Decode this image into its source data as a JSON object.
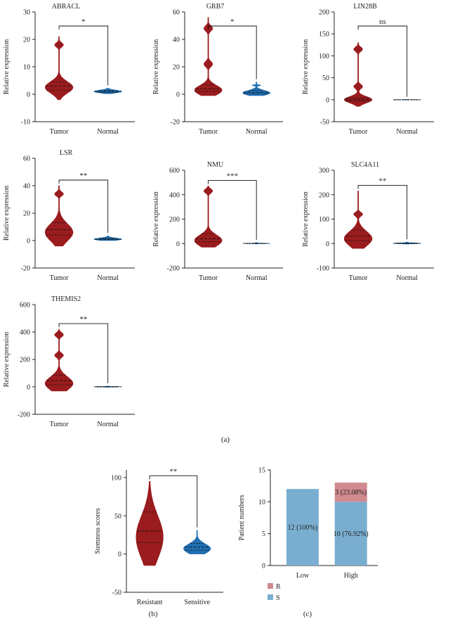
{
  "colors": {
    "tumor": "#9b1c1e",
    "normal": "#1f6fb2",
    "stacked_s": "#7aaed0",
    "stacked_r": "#d08a8f",
    "axis": "#222222"
  },
  "panel_labels": {
    "a": "(a)",
    "b": "(b)",
    "c": "(c)"
  },
  "chart_data": [
    {
      "type": "violin",
      "title": "ABRACL",
      "ylabel": "Relative expression",
      "categories": [
        "Tumor",
        "Normal"
      ],
      "ylim": [
        -10,
        30
      ],
      "yticks": [
        -10,
        0,
        10,
        20,
        30
      ],
      "significance": "*",
      "series": [
        {
          "name": "Tumor",
          "min": -2,
          "max": 21,
          "median": 3,
          "q1": 1.5,
          "q3": 4.5,
          "mode": 2.5,
          "bumps": [
            18
          ]
        },
        {
          "name": "Normal",
          "min": 0.2,
          "max": 2.2,
          "median": 1,
          "q1": 0.7,
          "q3": 1.4,
          "mode": 1,
          "bumps": []
        }
      ]
    },
    {
      "type": "violin",
      "title": "GRB7",
      "ylabel": "Relative expression",
      "categories": [
        "Tumor",
        "Normal"
      ],
      "ylim": [
        -20,
        60
      ],
      "yticks": [
        -20,
        0,
        20,
        40,
        60
      ],
      "significance": "*",
      "series": [
        {
          "name": "Tumor",
          "min": -1,
          "max": 56,
          "median": 4,
          "q1": 2,
          "q3": 7,
          "mode": 3,
          "bumps": [
            22,
            48
          ]
        },
        {
          "name": "Normal",
          "min": -1,
          "max": 9,
          "median": 1.5,
          "q1": 0.5,
          "q3": 3,
          "mode": 1,
          "bumps": [
            6.5
          ]
        }
      ]
    },
    {
      "type": "violin",
      "title": "LIN28B",
      "ylabel": "Relative expression",
      "categories": [
        "Tumor",
        "Normal"
      ],
      "ylim": [
        -50,
        200
      ],
      "yticks": [
        -50,
        0,
        50,
        100,
        150,
        200
      ],
      "significance": "ns",
      "series": [
        {
          "name": "Tumor",
          "min": -15,
          "max": 130,
          "median": 0,
          "q1": -3,
          "q3": 4,
          "mode": 0,
          "bumps": [
            30,
            115
          ]
        },
        {
          "name": "Normal",
          "min": -0.5,
          "max": 0.5,
          "median": 0,
          "q1": 0,
          "q3": 0,
          "mode": 0,
          "bumps": []
        }
      ]
    },
    {
      "type": "violin",
      "title": "LSR",
      "ylabel": "Relative expression",
      "categories": [
        "Tumor",
        "Normal"
      ],
      "ylim": [
        -20,
        60
      ],
      "yticks": [
        -20,
        0,
        20,
        40,
        60
      ],
      "significance": "**",
      "series": [
        {
          "name": "Tumor",
          "min": -4,
          "max": 40,
          "median": 8,
          "q1": 4,
          "q3": 13,
          "mode": 6,
          "bumps": [
            34
          ]
        },
        {
          "name": "Normal",
          "min": 0,
          "max": 3.5,
          "median": 1,
          "q1": 0.6,
          "q3": 1.8,
          "mode": 1,
          "bumps": []
        }
      ]
    },
    {
      "type": "violin",
      "title": "NMU",
      "ylabel": "Relative expression",
      "categories": [
        "Tumor",
        "Normal"
      ],
      "ylim": [
        -200,
        600
      ],
      "yticks": [
        -200,
        0,
        200,
        400,
        600
      ],
      "significance": "***",
      "series": [
        {
          "name": "Tumor",
          "min": -30,
          "max": 470,
          "median": 40,
          "q1": 15,
          "q3": 80,
          "mode": 25,
          "bumps": [
            430
          ]
        },
        {
          "name": "Normal",
          "min": -3,
          "max": 8,
          "median": 1,
          "q1": 0,
          "q3": 2,
          "mode": 1,
          "bumps": []
        }
      ]
    },
    {
      "type": "violin",
      "title": "SLC4A11",
      "ylabel": "Relative expression",
      "categories": [
        "Tumor",
        "Normal"
      ],
      "ylim": [
        -100,
        300
      ],
      "yticks": [
        -100,
        0,
        100,
        200,
        300
      ],
      "significance": "**",
      "series": [
        {
          "name": "Tumor",
          "min": -20,
          "max": 215,
          "median": 30,
          "q1": 12,
          "q3": 55,
          "mode": 20,
          "bumps": [
            120
          ]
        },
        {
          "name": "Normal",
          "min": -2,
          "max": 6,
          "median": 1,
          "q1": 0,
          "q3": 2,
          "mode": 1,
          "bumps": []
        }
      ]
    },
    {
      "type": "violin",
      "title": "THEMIS2",
      "ylabel": "Relative expression",
      "categories": [
        "Tumor",
        "Normal"
      ],
      "ylim": [
        -200,
        600
      ],
      "yticks": [
        -200,
        0,
        200,
        400,
        600
      ],
      "significance": "**",
      "series": [
        {
          "name": "Tumor",
          "min": -30,
          "max": 420,
          "median": 45,
          "q1": 15,
          "q3": 85,
          "mode": 25,
          "bumps": [
            230,
            380
          ]
        },
        {
          "name": "Normal",
          "min": -2,
          "max": 6,
          "median": 1,
          "q1": 0,
          "q3": 2,
          "mode": 1,
          "bumps": []
        }
      ]
    },
    {
      "type": "violin",
      "title": "",
      "ylabel": "Stemness scores",
      "categories": [
        "Resistant",
        "Sensitive"
      ],
      "ylim": [
        -50,
        110
      ],
      "yticks": [
        -50,
        0,
        50,
        100
      ],
      "significance": "**",
      "series": [
        {
          "name": "Resistant",
          "min": -15,
          "max": 95,
          "median": 30,
          "q1": 15,
          "q3": 55,
          "mode": 22,
          "bumps": []
        },
        {
          "name": "Sensitive",
          "min": 0,
          "max": 31,
          "median": 9,
          "q1": 5,
          "q3": 14,
          "mode": 7,
          "bumps": []
        }
      ]
    },
    {
      "type": "stacked_bar",
      "title": "",
      "ylabel": "Patient numbers",
      "categories": [
        "Low",
        "High"
      ],
      "ylim": [
        0,
        15
      ],
      "yticks": [
        0,
        5,
        10,
        15
      ],
      "series": [
        {
          "name": "S",
          "values": [
            12,
            10
          ],
          "labels": [
            "12 (100%)",
            "10 (76.92%)"
          ]
        },
        {
          "name": "R",
          "values": [
            0,
            3
          ],
          "labels": [
            "",
            "3 (23.08%)"
          ]
        }
      ],
      "legend": [
        "R",
        "S"
      ]
    }
  ]
}
